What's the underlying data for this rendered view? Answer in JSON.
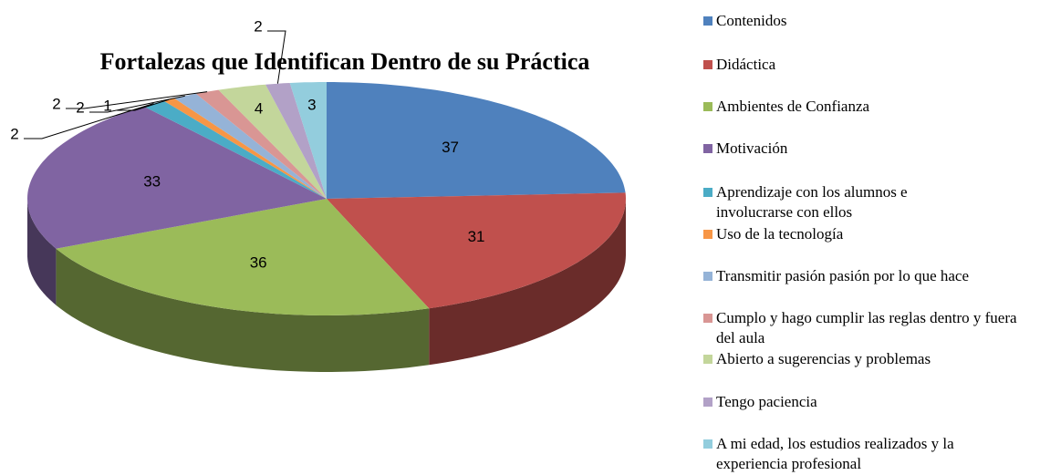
{
  "chart_data": {
    "type": "pie3d",
    "title": "Fortalezas que Identifican Dentro de su Práctica",
    "categories": [
      "Contenidos",
      "Didáctica",
      "Ambientes de Confianza",
      "Motivación",
      "Aprendizaje con los alumnos e involucrarse con ellos",
      "Uso de la tecnología",
      "Transmitir pasión pasión por lo que hace",
      "Cumplo y hago cumplir las reglas dentro y fuera del aula",
      "Abierto a sugerencias y problemas",
      "Tengo paciencia",
      "A mi edad, los estudios realizados y la experiencia profesional"
    ],
    "values": [
      37,
      31,
      36,
      33,
      2,
      1,
      2,
      2,
      4,
      2,
      3
    ],
    "colors": [
      "#4F81BD",
      "#C0504D",
      "#9BBB59",
      "#8064A2",
      "#4BACC6",
      "#F79646",
      "#95B3D7",
      "#D99694",
      "#C3D69B",
      "#B2A1C7",
      "#93CDDD"
    ],
    "legend": "right"
  }
}
